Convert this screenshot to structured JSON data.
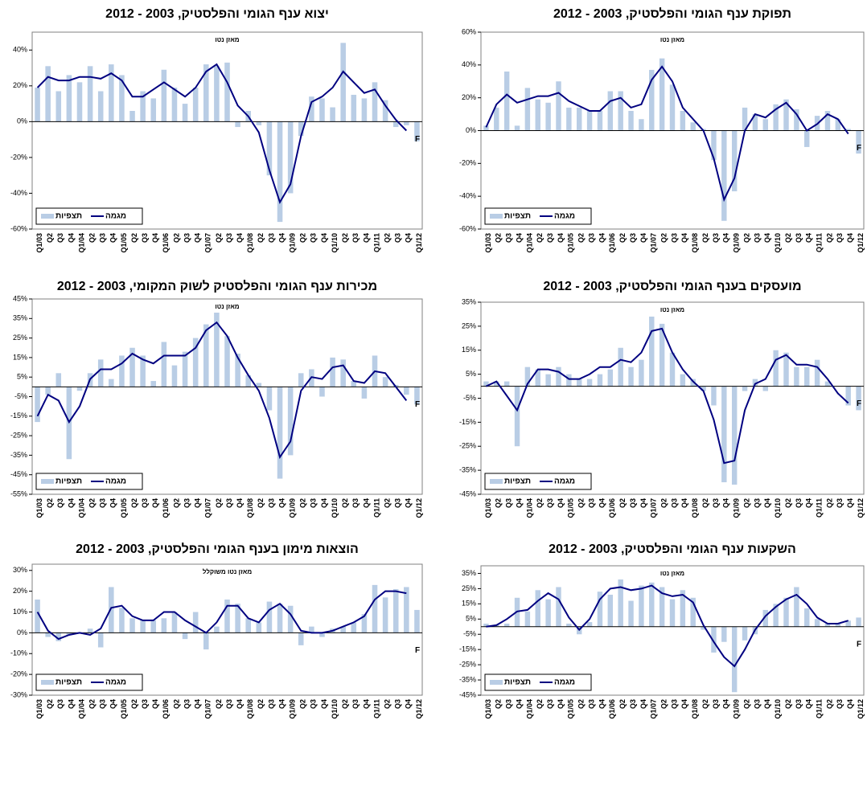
{
  "chart_data": [
    {
      "type": "bar",
      "title": "יצוא ענף הגומי והפלסטיק, 2003 - 2012",
      "subtitle": "מאזן נטו",
      "annotation": "F",
      "categories": [
        "Q1/03",
        "Q2",
        "Q3",
        "Q4",
        "Q1/04",
        "Q2",
        "Q3",
        "Q4",
        "Q1/05",
        "Q2",
        "Q3",
        "Q4",
        "Q1/06",
        "Q2",
        "Q3",
        "Q4",
        "Q1/07",
        "Q2",
        "Q3",
        "Q4",
        "Q1/08",
        "Q2",
        "Q3",
        "Q4",
        "Q1/09",
        "Q2",
        "Q3",
        "Q4",
        "Q1/10",
        "Q2",
        "Q3",
        "Q4",
        "Q1/11",
        "Q2",
        "Q3",
        "Q4",
        "Q1/12"
      ],
      "series": [
        {
          "name": "תצפיות",
          "type": "bar",
          "color": "#b9cde5",
          "values": [
            19,
            31,
            17,
            26,
            22,
            31,
            17,
            32,
            26,
            6,
            17,
            13,
            29,
            19,
            10,
            19,
            32,
            31,
            33,
            -3,
            6,
            -2,
            -30,
            -56,
            -40,
            -8,
            14,
            13,
            8,
            44,
            15,
            13,
            22,
            12,
            -3,
            -2,
            -11
          ]
        },
        {
          "name": "מגמה",
          "type": "line",
          "color": "#000080",
          "values": [
            19,
            25,
            23,
            23,
            25,
            25,
            24,
            27,
            23,
            14,
            14,
            18,
            22,
            18,
            14,
            19,
            28,
            32,
            22,
            9,
            3,
            -6,
            -27,
            -45,
            -35,
            -8,
            11,
            14,
            19,
            28,
            22,
            16,
            18,
            9,
            1,
            -5,
            null
          ]
        }
      ],
      "ylim": [
        -60,
        50
      ],
      "yticks": [
        {
          "value": -60,
          "label": "-60%"
        },
        {
          "value": -40,
          "label": "-40%"
        },
        {
          "value": -20,
          "label": "-20%"
        },
        {
          "value": 0,
          "label": "0%"
        },
        {
          "value": 20,
          "label": "20%"
        },
        {
          "value": 40,
          "label": "40%"
        }
      ]
    },
    {
      "type": "bar",
      "title": "תפוקת ענף הגומי והפלסטיק, 2003 - 2012",
      "subtitle": "מאזן נטו",
      "annotation": "F",
      "categories": [
        "Q1/03",
        "Q2",
        "Q3",
        "Q4",
        "Q1/04",
        "Q2",
        "Q3",
        "Q4",
        "Q1/05",
        "Q2",
        "Q3",
        "Q4",
        "Q1/06",
        "Q2",
        "Q3",
        "Q4",
        "Q1/07",
        "Q2",
        "Q3",
        "Q4",
        "Q1/08",
        "Q2",
        "Q3",
        "Q4",
        "Q1/09",
        "Q2",
        "Q3",
        "Q4",
        "Q1/10",
        "Q2",
        "Q3",
        "Q4",
        "Q1/11",
        "Q2",
        "Q3",
        "Q4",
        "Q1/12"
      ],
      "series": [
        {
          "name": "תצפיות",
          "type": "bar",
          "color": "#b9cde5",
          "values": [
            3,
            14,
            36,
            3,
            26,
            19,
            17,
            30,
            14,
            14,
            12,
            12,
            24,
            24,
            12,
            7,
            37,
            44,
            28,
            12,
            5,
            1,
            -18,
            -55,
            -37,
            14,
            10,
            7,
            16,
            19,
            13,
            -10,
            9,
            12,
            7,
            1,
            -14
          ]
        },
        {
          "name": "מגמה",
          "type": "line",
          "color": "#000080",
          "values": [
            2,
            16,
            22,
            17,
            19,
            21,
            21,
            23,
            18,
            15,
            12,
            12,
            18,
            20,
            14,
            16,
            31,
            39,
            30,
            14,
            7,
            0,
            -17,
            -42,
            -29,
            0,
            10,
            8,
            13,
            17,
            10,
            0,
            4,
            10,
            7,
            -2,
            null
          ]
        }
      ],
      "ylim": [
        -60,
        60
      ],
      "yticks": [
        {
          "value": -60,
          "label": "-60%"
        },
        {
          "value": -40,
          "label": "-40%"
        },
        {
          "value": -20,
          "label": "-20%"
        },
        {
          "value": 0,
          "label": "0%"
        },
        {
          "value": 20,
          "label": "20%"
        },
        {
          "value": 40,
          "label": "40%"
        },
        {
          "value": 60,
          "label": "60%"
        }
      ]
    },
    {
      "type": "bar",
      "title": "מכירות ענף הגומי והפלסטיק לשוק המקומי, 2003 - 2012",
      "subtitle": "מאזן נטו",
      "annotation": "F",
      "categories": [
        "Q1/03",
        "Q2",
        "Q3",
        "Q4",
        "Q1/04",
        "Q2",
        "Q3",
        "Q4",
        "Q1/05",
        "Q2",
        "Q3",
        "Q4",
        "Q1/06",
        "Q2",
        "Q3",
        "Q4",
        "Q1/07",
        "Q2",
        "Q3",
        "Q4",
        "Q1/08",
        "Q2",
        "Q3",
        "Q4",
        "Q1/09",
        "Q2",
        "Q3",
        "Q4",
        "Q1/10",
        "Q2",
        "Q3",
        "Q4",
        "Q1/11",
        "Q2",
        "Q3",
        "Q4",
        "Q1/12"
      ],
      "series": [
        {
          "name": "תצפיות",
          "type": "bar",
          "color": "#b9cde5",
          "values": [
            -18,
            -4,
            7,
            -37,
            -2,
            7,
            14,
            4,
            16,
            20,
            16,
            3,
            23,
            11,
            18,
            25,
            32,
            38,
            26,
            17,
            6,
            2,
            -12,
            -47,
            -35,
            7,
            9,
            -5,
            15,
            14,
            3,
            -6,
            16,
            5,
            1,
            -4,
            -9
          ]
        },
        {
          "name": "מגמה",
          "type": "line",
          "color": "#000080",
          "values": [
            -15,
            -4,
            -7,
            -18,
            -10,
            4,
            9,
            9,
            12,
            17,
            14,
            12,
            16,
            16,
            16,
            20,
            29,
            33,
            26,
            15,
            6,
            -2,
            -16,
            -36,
            -28,
            -2,
            5,
            4,
            10,
            11,
            3,
            2,
            8,
            7,
            0,
            -7,
            null
          ]
        }
      ],
      "ylim": [
        -55,
        45
      ],
      "yticks": [
        {
          "value": -55,
          "label": "-55%"
        },
        {
          "value": -45,
          "label": "-45%"
        },
        {
          "value": -35,
          "label": "-35%"
        },
        {
          "value": -25,
          "label": "-25%"
        },
        {
          "value": -15,
          "label": "-15%"
        },
        {
          "value": -5,
          "label": "-5%"
        },
        {
          "value": 5,
          "label": "5%"
        },
        {
          "value": 15,
          "label": "15%"
        },
        {
          "value": 25,
          "label": "25%"
        },
        {
          "value": 35,
          "label": "35%"
        },
        {
          "value": 45,
          "label": "45%"
        }
      ]
    },
    {
      "type": "bar",
      "title": "מועסקים בענף הגומי והפלסטיק, 2003 - 2012",
      "subtitle": "מאזן נטו",
      "annotation": "F",
      "categories": [
        "Q1/03",
        "Q2",
        "Q3",
        "Q4",
        "Q1/04",
        "Q2",
        "Q3",
        "Q4",
        "Q1/05",
        "Q2",
        "Q3",
        "Q4",
        "Q1/06",
        "Q2",
        "Q3",
        "Q4",
        "Q1/07",
        "Q2",
        "Q3",
        "Q4",
        "Q1/08",
        "Q2",
        "Q3",
        "Q4",
        "Q1/09",
        "Q2",
        "Q3",
        "Q4",
        "Q1/10",
        "Q2",
        "Q3",
        "Q4",
        "Q1/11",
        "Q2",
        "Q3",
        "Q4",
        "Q1/12"
      ],
      "series": [
        {
          "name": "תצפיות",
          "type": "bar",
          "color": "#b9cde5",
          "values": [
            2,
            2,
            2,
            -25,
            8,
            7,
            5,
            8,
            5,
            3,
            3,
            5,
            7,
            16,
            8,
            11,
            29,
            26,
            14,
            5,
            3,
            -2,
            -8,
            -40,
            -41,
            -2,
            3,
            -2,
            15,
            14,
            8,
            8,
            11,
            2,
            0,
            -8,
            -10
          ]
        },
        {
          "name": "מגמה",
          "type": "line",
          "color": "#000080",
          "values": [
            0,
            2,
            -4,
            -10,
            1,
            7,
            7,
            6,
            3,
            3,
            5,
            8,
            8,
            11,
            10,
            14,
            23,
            24,
            14,
            7,
            2,
            -2,
            -14,
            -32,
            -31,
            -10,
            1,
            3,
            11,
            13,
            9,
            9,
            8,
            3,
            -3,
            -7,
            null
          ]
        }
      ],
      "ylim": [
        -45,
        35
      ],
      "yticks": [
        {
          "value": -45,
          "label": "-45%"
        },
        {
          "value": -35,
          "label": "-35%"
        },
        {
          "value": -25,
          "label": "-25%"
        },
        {
          "value": -15,
          "label": "-15%"
        },
        {
          "value": -5,
          "label": "-5%"
        },
        {
          "value": 5,
          "label": "5%"
        },
        {
          "value": 15,
          "label": "15%"
        },
        {
          "value": 25,
          "label": "25%"
        },
        {
          "value": 35,
          "label": "35%"
        }
      ]
    },
    {
      "type": "bar",
      "title": "הוצאות מימון בענף הגומי והפלסטיק, 2003 - 2012",
      "subtitle": "מאזן נטו משוקלל",
      "annotation": "F",
      "categories": [
        "Q1/03",
        "Q2",
        "Q3",
        "Q4",
        "Q1/04",
        "Q2",
        "Q3",
        "Q4",
        "Q1/05",
        "Q2",
        "Q3",
        "Q4",
        "Q1/06",
        "Q2",
        "Q3",
        "Q4",
        "Q1/07",
        "Q2",
        "Q3",
        "Q4",
        "Q1/08",
        "Q2",
        "Q3",
        "Q4",
        "Q1/09",
        "Q2",
        "Q3",
        "Q4",
        "Q1/10",
        "Q2",
        "Q3",
        "Q4",
        "Q1/11",
        "Q2",
        "Q3",
        "Q4",
        "Q1/12"
      ],
      "series": [
        {
          "name": "תצפיות",
          "type": "bar",
          "color": "#b9cde5",
          "values": [
            16,
            -2,
            -4,
            -1,
            0,
            2,
            -7,
            22,
            12,
            7,
            6,
            6,
            7,
            10,
            -3,
            10,
            -8,
            3,
            16,
            14,
            7,
            5,
            15,
            14,
            13,
            -6,
            3,
            -2,
            2,
            3,
            5,
            9,
            23,
            17,
            21,
            22,
            11
          ]
        },
        {
          "name": "מגמה",
          "type": "line",
          "color": "#000080",
          "values": [
            10,
            1,
            -3,
            -1,
            0,
            -1,
            2,
            12,
            13,
            8,
            6,
            6,
            10,
            10,
            6,
            3,
            0,
            5,
            13,
            13,
            7,
            5,
            11,
            14,
            9,
            1,
            0,
            0,
            1,
            3,
            5,
            8,
            16,
            20,
            20,
            19,
            null
          ]
        }
      ],
      "ylim": [
        -30,
        33
      ],
      "yticks": [
        {
          "value": -30,
          "label": "-30%"
        },
        {
          "value": -20,
          "label": "-20%"
        },
        {
          "value": -10,
          "label": "-10%"
        },
        {
          "value": 0,
          "label": "0%"
        },
        {
          "value": 10,
          "label": "10%"
        },
        {
          "value": 20,
          "label": "20%"
        },
        {
          "value": 30,
          "label": "30%"
        }
      ]
    },
    {
      "type": "bar",
      "title": "השקעות ענף הגומי והפלסטיק, 2003 - 2012",
      "subtitle": "מאזן נטו",
      "annotation": "F",
      "categories": [
        "Q1/03",
        "Q2",
        "Q3",
        "Q4",
        "Q1/04",
        "Q2",
        "Q3",
        "Q4",
        "Q1/05",
        "Q2",
        "Q3",
        "Q4",
        "Q1/06",
        "Q2",
        "Q3",
        "Q4",
        "Q1/07",
        "Q2",
        "Q3",
        "Q4",
        "Q1/08",
        "Q2",
        "Q3",
        "Q4",
        "Q1/09",
        "Q2",
        "Q3",
        "Q4",
        "Q1/10",
        "Q2",
        "Q3",
        "Q4",
        "Q1/11",
        "Q2",
        "Q3",
        "Q4",
        "Q1/12"
      ],
      "series": [
        {
          "name": "תצפיות",
          "type": "bar",
          "color": "#b9cde5",
          "values": [
            2,
            1,
            2,
            19,
            10,
            24,
            18,
            26,
            2,
            -5,
            3,
            23,
            21,
            31,
            17,
            27,
            29,
            26,
            18,
            24,
            19,
            -2,
            -17,
            -10,
            -43,
            -9,
            -5,
            11,
            15,
            19,
            26,
            12,
            5,
            2,
            2,
            4,
            6
          ]
        },
        {
          "name": "מגמה",
          "type": "line",
          "color": "#000080",
          "values": [
            0,
            1,
            5,
            10,
            11,
            17,
            22,
            18,
            6,
            -2,
            5,
            18,
            25,
            26,
            24,
            25,
            27,
            22,
            20,
            21,
            16,
            1,
            -10,
            -20,
            -26,
            -15,
            -2,
            7,
            13,
            18,
            21,
            15,
            6,
            2,
            2,
            4,
            null
          ]
        }
      ],
      "ylim": [
        -45,
        40
      ],
      "yticks": [
        {
          "value": -45,
          "label": "-45%"
        },
        {
          "value": -35,
          "label": "-35%"
        },
        {
          "value": -25,
          "label": "-25%"
        },
        {
          "value": -15,
          "label": "-15%"
        },
        {
          "value": -5,
          "label": "-5%"
        },
        {
          "value": 5,
          "label": "5%"
        },
        {
          "value": 15,
          "label": "15%"
        },
        {
          "value": 25,
          "label": "25%"
        },
        {
          "value": 35,
          "label": "35%"
        }
      ]
    }
  ]
}
